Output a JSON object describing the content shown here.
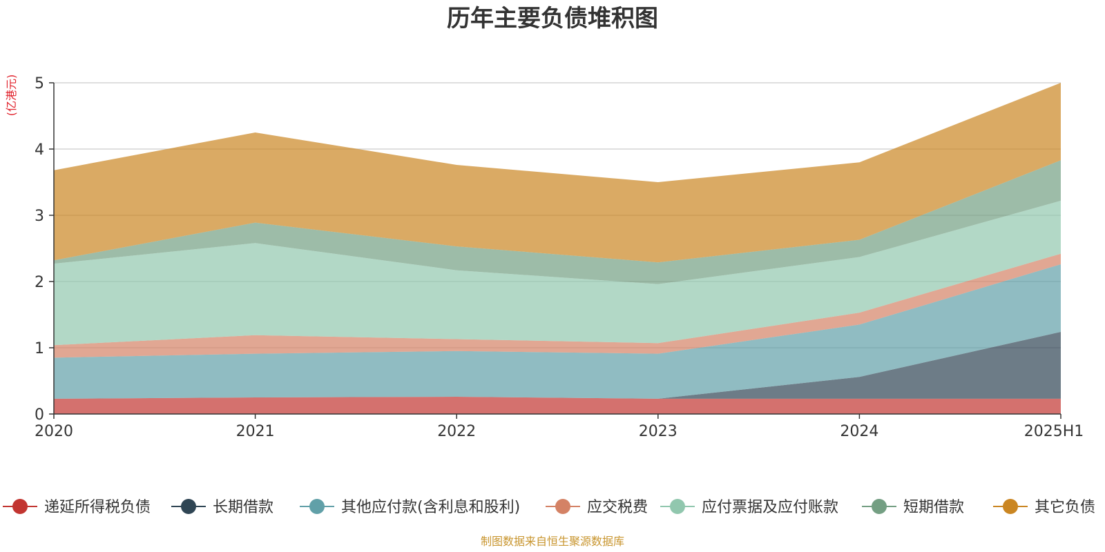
{
  "chart_data": {
    "type": "area",
    "stacked": true,
    "title": "历年主要负债堆积图",
    "unit_label": "(亿港元)",
    "categories": [
      "2020",
      "2021",
      "2022",
      "2023",
      "2024",
      "2025H1"
    ],
    "ylim": [
      0,
      5
    ],
    "yticks": [
      "0",
      "1",
      "2",
      "3",
      "4",
      "5"
    ],
    "grid": true,
    "legend_position": "bottom",
    "series": [
      {
        "name": "递延所得税负债",
        "color": "#c23531",
        "values": [
          0.23,
          0.25,
          0.26,
          0.23,
          0.23,
          0.23
        ]
      },
      {
        "name": "长期借款",
        "color": "#2f4554",
        "values": [
          0.0,
          0.0,
          0.0,
          0.0,
          0.33,
          1.01
        ]
      },
      {
        "name": "其他应付款(含利息和股利)",
        "color": "#61a0a8",
        "values": [
          0.62,
          0.66,
          0.69,
          0.68,
          0.79,
          1.02
        ]
      },
      {
        "name": "应交税费",
        "color": "#d48265",
        "values": [
          0.19,
          0.28,
          0.18,
          0.16,
          0.18,
          0.16
        ]
      },
      {
        "name": "应付票据及应付账款",
        "color": "#91c7ae",
        "values": [
          1.23,
          1.39,
          1.04,
          0.89,
          0.84,
          0.8
        ]
      },
      {
        "name": "短期借款",
        "color": "#749f83",
        "values": [
          0.05,
          0.31,
          0.36,
          0.33,
          0.26,
          0.61
        ]
      },
      {
        "name": "其它负债",
        "color": "#ca8622",
        "values": [
          1.36,
          1.36,
          1.23,
          1.21,
          1.17,
          1.17
        ]
      }
    ],
    "source": "制图数据来自恒生聚源数据库"
  }
}
